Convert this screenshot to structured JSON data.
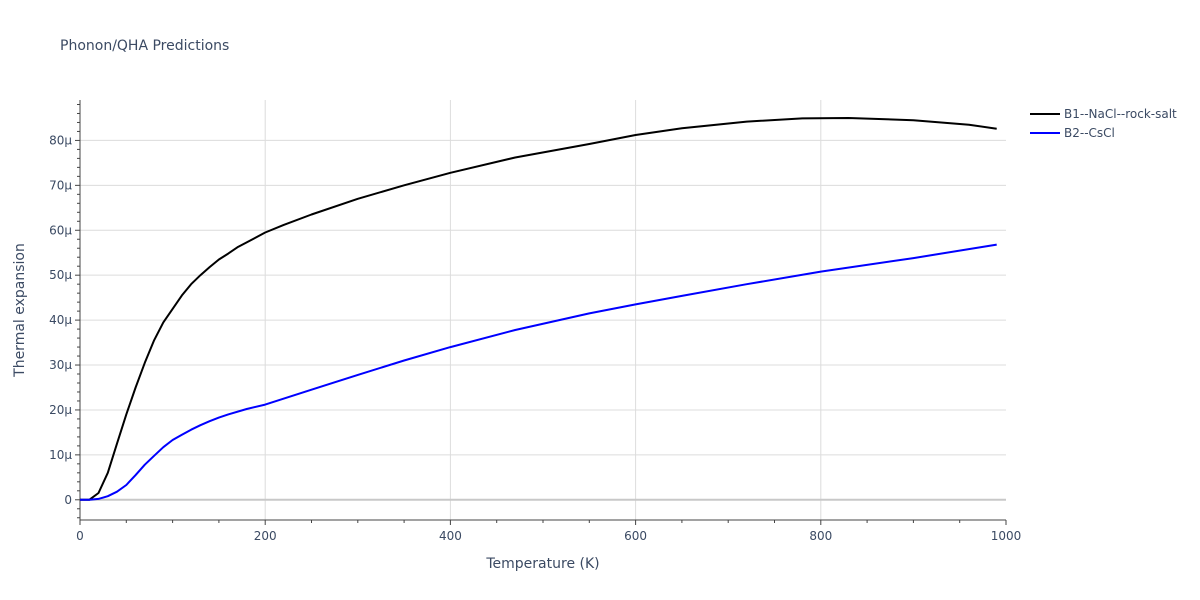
{
  "chart_data": {
    "type": "line",
    "title": "Phonon/QHA Predictions",
    "xlabel": "Temperature (K)",
    "ylabel": "Thermal expansion",
    "xlim": [
      0,
      1000
    ],
    "ylim": [
      -4.5e-06,
      8.9e-05
    ],
    "xticks": [
      0,
      200,
      400,
      600,
      800,
      1000
    ],
    "xtick_labels": [
      "0",
      "200",
      "400",
      "600",
      "800",
      "1000"
    ],
    "yticks": [
      0,
      1e-05,
      2e-05,
      3e-05,
      4e-05,
      5e-05,
      6e-05,
      7e-05,
      8e-05
    ],
    "ytick_labels": [
      "0",
      "10μ",
      "20μ",
      "30μ",
      "40μ",
      "50μ",
      "60μ",
      "70μ",
      "80μ"
    ],
    "grid": true,
    "legend_position": "top-right",
    "series": [
      {
        "name": "B1--NaCl--rock-salt",
        "color": "#000000",
        "x": [
          0,
          10,
          20,
          30,
          40,
          50,
          60,
          70,
          80,
          90,
          100,
          110,
          120,
          130,
          140,
          150,
          160,
          170,
          180,
          200,
          220,
          250,
          300,
          350,
          400,
          470,
          550,
          600,
          650,
          720,
          780,
          830,
          900,
          960,
          990
        ],
        "y": [
          0,
          0,
          1.5e-06,
          6e-06,
          1.25e-05,
          1.9e-05,
          2.5e-05,
          3.05e-05,
          3.55e-05,
          3.95e-05,
          4.25e-05,
          4.55e-05,
          4.8e-05,
          5e-05,
          5.18e-05,
          5.35e-05,
          5.48e-05,
          5.62e-05,
          5.73e-05,
          5.95e-05,
          6.12e-05,
          6.35e-05,
          6.7e-05,
          7e-05,
          7.28e-05,
          7.62e-05,
          7.92e-05,
          8.12e-05,
          8.27e-05,
          8.42e-05,
          8.49e-05,
          8.5e-05,
          8.45e-05,
          8.35e-05,
          8.26e-05
        ]
      },
      {
        "name": "B2--CsCl",
        "color": "#0000ff",
        "x": [
          0,
          10,
          20,
          30,
          40,
          50,
          60,
          70,
          80,
          90,
          100,
          110,
          120,
          130,
          140,
          150,
          160,
          180,
          200,
          250,
          300,
          350,
          400,
          470,
          550,
          600,
          650,
          720,
          800,
          900,
          990
        ],
        "y": [
          0,
          0,
          2e-07,
          8e-07,
          1.8e-06,
          3.3e-06,
          5.5e-06,
          7.8e-06,
          9.8e-06,
          1.17e-05,
          1.33e-05,
          1.45e-05,
          1.56e-05,
          1.66e-05,
          1.75e-05,
          1.83e-05,
          1.9e-05,
          2.02e-05,
          2.12e-05,
          2.45e-05,
          2.78e-05,
          3.1e-05,
          3.4e-05,
          3.78e-05,
          4.15e-05,
          4.35e-05,
          4.54e-05,
          4.8e-05,
          5.08e-05,
          5.38e-05,
          5.68e-05
        ]
      }
    ]
  }
}
